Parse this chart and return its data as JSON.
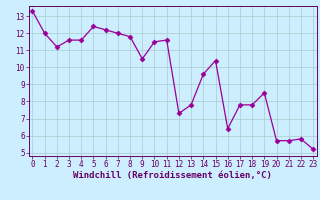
{
  "x": [
    0,
    1,
    2,
    3,
    4,
    5,
    6,
    7,
    8,
    9,
    10,
    11,
    12,
    13,
    14,
    15,
    16,
    17,
    18,
    19,
    20,
    21,
    22,
    23
  ],
  "y": [
    13.3,
    12.0,
    11.2,
    11.6,
    11.6,
    12.4,
    12.2,
    12.0,
    11.8,
    10.5,
    11.5,
    11.6,
    7.3,
    7.8,
    9.6,
    10.4,
    6.4,
    7.8,
    7.8,
    8.5,
    5.7,
    5.7,
    5.8,
    5.2
  ],
  "xlim": [
    -0.3,
    23.3
  ],
  "ylim": [
    4.8,
    13.6
  ],
  "yticks": [
    5,
    6,
    7,
    8,
    9,
    10,
    11,
    12,
    13
  ],
  "xticks": [
    0,
    1,
    2,
    3,
    4,
    5,
    6,
    7,
    8,
    9,
    10,
    11,
    12,
    13,
    14,
    15,
    16,
    17,
    18,
    19,
    20,
    21,
    22,
    23
  ],
  "xlabel": "Windchill (Refroidissement éolien,°C)",
  "line_color": "#990099",
  "marker": "D",
  "marker_size": 2.5,
  "bg_color": "#cceeff",
  "grid_color": "#aacccc",
  "axis_label_color": "#660066",
  "tick_fontsize": 5.5,
  "xlabel_fontsize": 6.5
}
